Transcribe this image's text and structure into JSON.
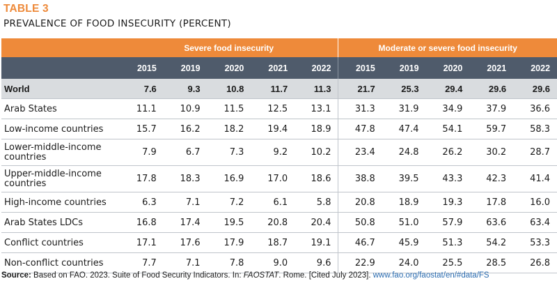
{
  "table": {
    "label": "TABLE 3",
    "title": "PREVALENCE OF FOOD INSECURITY (PERCENT)",
    "groups": [
      "Severe food insecurity",
      "Moderate or severe food insecurity"
    ],
    "years": [
      "2015",
      "2019",
      "2020",
      "2021",
      "2022",
      "2015",
      "2019",
      "2020",
      "2021",
      "2022"
    ],
    "rows": [
      {
        "name": "World",
        "values": [
          "7.6",
          "9.3",
          "10.8",
          "11.7",
          "11.3",
          "21.7",
          "25.3",
          "29.4",
          "29.6",
          "29.6"
        ]
      },
      {
        "name": "Arab States",
        "values": [
          "11.1",
          "10.9",
          "11.5",
          "12.5",
          "13.1",
          "31.3",
          "31.9",
          "34.9",
          "37.9",
          "36.6"
        ]
      },
      {
        "name": "Low-income countries",
        "values": [
          "15.7",
          "16.2",
          "18.2",
          "19.4",
          "18.9",
          "47.8",
          "47.4",
          "54.1",
          "59.7",
          "58.3"
        ]
      },
      {
        "name": "Lower-middle-income countries",
        "values": [
          "7.9",
          "6.7",
          "7.3",
          "9.2",
          "10.2",
          "23.4",
          "24.8",
          "26.2",
          "30.2",
          "28.7"
        ]
      },
      {
        "name": "Upper-middle-income countries",
        "values": [
          "17.8",
          "18.3",
          "16.9",
          "17.0",
          "18.6",
          "38.8",
          "39.5",
          "43.3",
          "42.3",
          "41.4"
        ]
      },
      {
        "name": "High-income countries",
        "values": [
          "6.3",
          "7.1",
          "7.2",
          "6.1",
          "5.8",
          "20.8",
          "18.9",
          "19.3",
          "17.8",
          "16.0"
        ]
      },
      {
        "name": "Arab States LDCs",
        "values": [
          "16.8",
          "17.4",
          "19.5",
          "20.8",
          "20.4",
          "50.8",
          "51.0",
          "57.9",
          "63.6",
          "63.4"
        ]
      },
      {
        "name": "Conflict countries",
        "values": [
          "17.1",
          "17.6",
          "17.9",
          "18.7",
          "19.1",
          "46.7",
          "45.9",
          "51.3",
          "54.2",
          "53.3"
        ]
      },
      {
        "name": "Non-conflict countries",
        "values": [
          "7.7",
          "7.1",
          "7.8",
          "9.0",
          "9.6",
          "22.9",
          "24.0",
          "25.5",
          "28.5",
          "26.8"
        ]
      }
    ]
  },
  "source": {
    "label": "Source:",
    "text1": " Based on FAO. 2023. Suite of Food Security Indicators. In: ",
    "italic": "FAOSTAT",
    "text2": ". Rome. [Cited July 2023]. ",
    "link": "www.fao.org/faostat/en/#data/FS"
  },
  "colors": {
    "accent": "#ee8a3a",
    "header_dark": "#4f5b6b",
    "world_row": "#d9dcdf",
    "link": "#2b6cb0"
  }
}
